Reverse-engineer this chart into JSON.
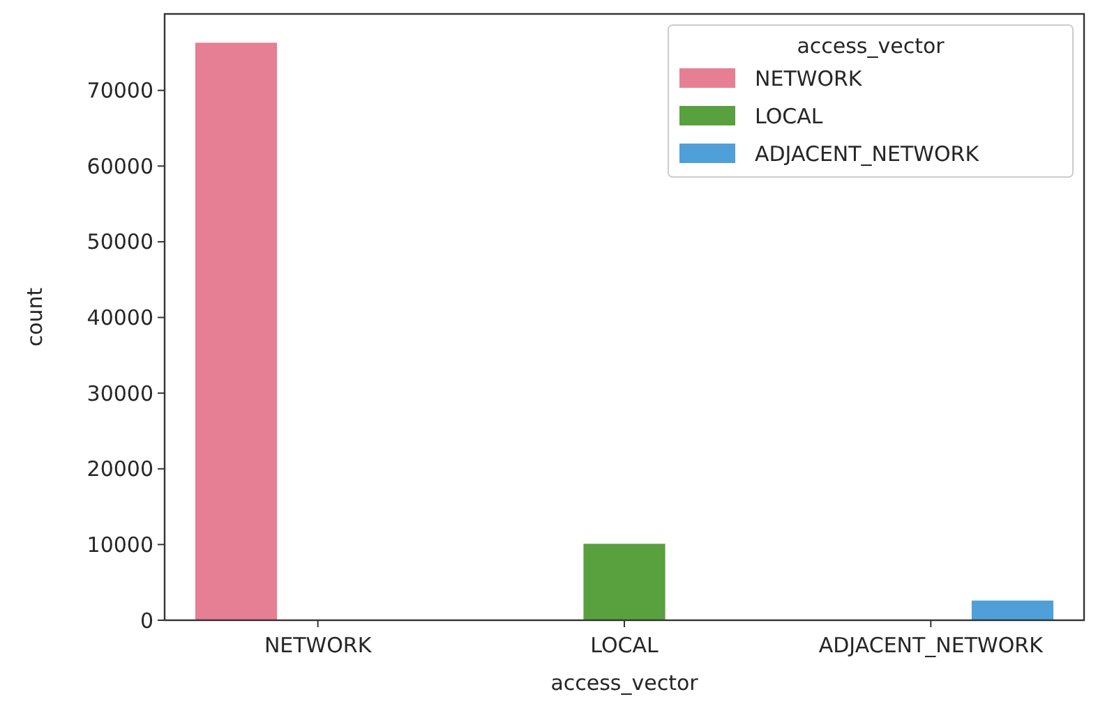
{
  "chart_data": {
    "type": "bar",
    "xlabel": "access_vector",
    "ylabel": "count",
    "legend_title": "access_vector",
    "categories": [
      "NETWORK",
      "LOCAL",
      "ADJACENT_NETWORK"
    ],
    "series": [
      {
        "name": "NETWORK",
        "color": "#e67f93",
        "values": [
          76300,
          null,
          null
        ]
      },
      {
        "name": "LOCAL",
        "color": "#59a03f",
        "values": [
          null,
          10100,
          null
        ]
      },
      {
        "name": "ADJACENT_NETWORK",
        "color": "#4fa0d8",
        "values": [
          null,
          null,
          2600
        ]
      }
    ],
    "ylim": [
      0,
      80100
    ],
    "yticks": [
      0,
      10000,
      20000,
      30000,
      40000,
      50000,
      60000,
      70000
    ],
    "legend": "top right",
    "grid": false
  }
}
